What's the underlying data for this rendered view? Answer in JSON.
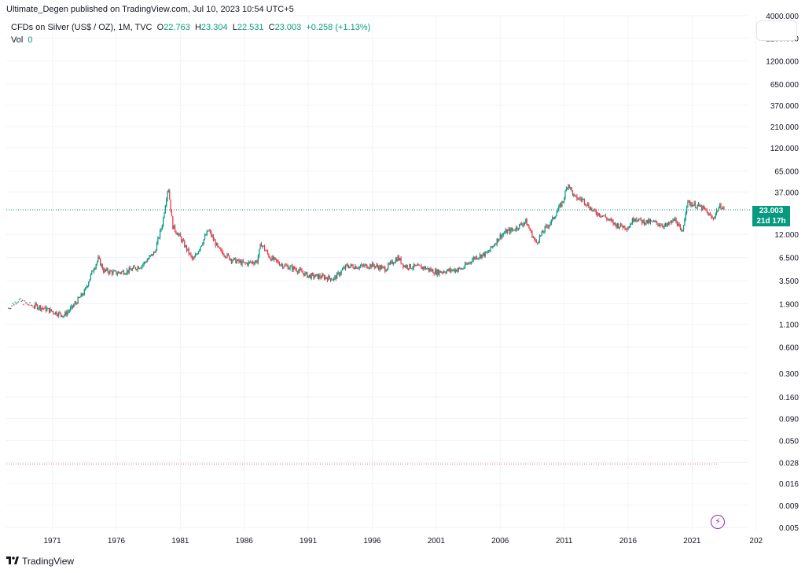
{
  "header": {
    "publisher": "Ultimate_Degen published on TradingView.com, Jul 10, 2023 10:54 UTC+5"
  },
  "legend": {
    "symbol": "CFDs on Silver (US$ / OZ), 1M, TVC",
    "o_label": "O",
    "o_value": "22.763",
    "h_label": "H",
    "h_value": "23.304",
    "l_label": "L",
    "l_value": "22.531",
    "c_label": "C",
    "c_value": "23.003",
    "change": "+0.258 (+1.13%)",
    "vol_label": "Vol",
    "vol_value": "0"
  },
  "price_tag": {
    "price": "23.003",
    "countdown": "21d 17h"
  },
  "footer": {
    "brand": "TradingView"
  },
  "colors": {
    "up": "#089981",
    "down": "#f23645",
    "grid": "#f0f3fa",
    "accent": "#9c27b0"
  },
  "icons": [
    "tradingview-logo-icon",
    "lightning-icon"
  ],
  "chart_data": {
    "type": "line",
    "title": "",
    "xlabel": "",
    "ylabel": "",
    "y_scale": "log",
    "grid": true,
    "x_ticks": [
      "1971",
      "1976",
      "1981",
      "1986",
      "1991",
      "1996",
      "2001",
      "2006",
      "2011",
      "2016",
      "2021",
      "202"
    ],
    "y_ticks": [
      "4000.000",
      "2200.000",
      "1200.000",
      "650.000",
      "370.000",
      "210.000",
      "120.000",
      "65.000",
      "37.000",
      "23.003",
      "12.000",
      "6.500",
      "3.500",
      "1.900",
      "1.100",
      "0.600",
      "0.300",
      "0.160",
      "0.090",
      "0.050",
      "0.028",
      "0.016",
      "0.009",
      "0.005"
    ],
    "ylim": [
      0.0045,
      4000
    ],
    "xlim": [
      1967.4,
      2025.4
    ],
    "current_price": 23.003,
    "low_marker": 0.027,
    "series": [
      {
        "values": [
          {
            "x": 1967.5,
            "y": 1.65
          },
          {
            "x": 1968.3,
            "y": 2.1
          },
          {
            "x": 1969.2,
            "y": 1.85
          },
          {
            "x": 1970.0,
            "y": 1.75
          },
          {
            "x": 1971.0,
            "y": 1.55
          },
          {
            "x": 1971.9,
            "y": 1.4
          },
          {
            "x": 1972.5,
            "y": 1.7
          },
          {
            "x": 1973.5,
            "y": 2.6
          },
          {
            "x": 1974.2,
            "y": 4.8
          },
          {
            "x": 1974.6,
            "y": 6.3
          },
          {
            "x": 1975.0,
            "y": 4.6
          },
          {
            "x": 1976.0,
            "y": 4.3
          },
          {
            "x": 1977.0,
            "y": 4.6
          },
          {
            "x": 1978.0,
            "y": 5.3
          },
          {
            "x": 1979.0,
            "y": 7.5
          },
          {
            "x": 1979.6,
            "y": 16.0
          },
          {
            "x": 1980.05,
            "y": 44.0
          },
          {
            "x": 1980.4,
            "y": 15.0
          },
          {
            "x": 1981.0,
            "y": 11.0
          },
          {
            "x": 1982.0,
            "y": 6.0
          },
          {
            "x": 1982.6,
            "y": 9.0
          },
          {
            "x": 1983.2,
            "y": 13.5
          },
          {
            "x": 1984.0,
            "y": 8.0
          },
          {
            "x": 1985.0,
            "y": 6.2
          },
          {
            "x": 1986.0,
            "y": 5.5
          },
          {
            "x": 1987.0,
            "y": 5.9
          },
          {
            "x": 1987.3,
            "y": 9.5
          },
          {
            "x": 1988.0,
            "y": 6.5
          },
          {
            "x": 1989.0,
            "y": 5.3
          },
          {
            "x": 1990.0,
            "y": 4.8
          },
          {
            "x": 1991.0,
            "y": 4.0
          },
          {
            "x": 1992.0,
            "y": 3.9
          },
          {
            "x": 1993.0,
            "y": 3.7
          },
          {
            "x": 1994.0,
            "y": 5.2
          },
          {
            "x": 1995.0,
            "y": 5.1
          },
          {
            "x": 1996.0,
            "y": 5.3
          },
          {
            "x": 1997.0,
            "y": 4.8
          },
          {
            "x": 1998.0,
            "y": 6.5
          },
          {
            "x": 1998.5,
            "y": 5.2
          },
          {
            "x": 1999.0,
            "y": 5.1
          },
          {
            "x": 2000.0,
            "y": 5.0
          },
          {
            "x": 2001.0,
            "y": 4.4
          },
          {
            "x": 2002.0,
            "y": 4.6
          },
          {
            "x": 2003.0,
            "y": 4.8
          },
          {
            "x": 2004.0,
            "y": 6.5
          },
          {
            "x": 2005.0,
            "y": 7.3
          },
          {
            "x": 2006.0,
            "y": 11.5
          },
          {
            "x": 2006.5,
            "y": 13.0
          },
          {
            "x": 2007.0,
            "y": 13.5
          },
          {
            "x": 2008.0,
            "y": 17.0
          },
          {
            "x": 2008.8,
            "y": 9.5
          },
          {
            "x": 2009.5,
            "y": 14.0
          },
          {
            "x": 2010.0,
            "y": 17.0
          },
          {
            "x": 2010.9,
            "y": 29.0
          },
          {
            "x": 2011.3,
            "y": 47.0
          },
          {
            "x": 2011.8,
            "y": 32.0
          },
          {
            "x": 2012.5,
            "y": 30.0
          },
          {
            "x": 2013.3,
            "y": 22.0
          },
          {
            "x": 2014.0,
            "y": 20.0
          },
          {
            "x": 2015.0,
            "y": 15.5
          },
          {
            "x": 2016.0,
            "y": 14.5
          },
          {
            "x": 2016.5,
            "y": 19.0
          },
          {
            "x": 2017.0,
            "y": 17.0
          },
          {
            "x": 2018.0,
            "y": 16.5
          },
          {
            "x": 2019.0,
            "y": 15.0
          },
          {
            "x": 2019.7,
            "y": 18.0
          },
          {
            "x": 2020.2,
            "y": 12.0
          },
          {
            "x": 2020.6,
            "y": 28.0
          },
          {
            "x": 2021.0,
            "y": 27.0
          },
          {
            "x": 2021.6,
            "y": 25.0
          },
          {
            "x": 2022.0,
            "y": 23.0
          },
          {
            "x": 2022.6,
            "y": 18.0
          },
          {
            "x": 2023.0,
            "y": 23.5
          },
          {
            "x": 2023.3,
            "y": 26.0
          },
          {
            "x": 2023.5,
            "y": 23.003
          }
        ]
      }
    ]
  }
}
